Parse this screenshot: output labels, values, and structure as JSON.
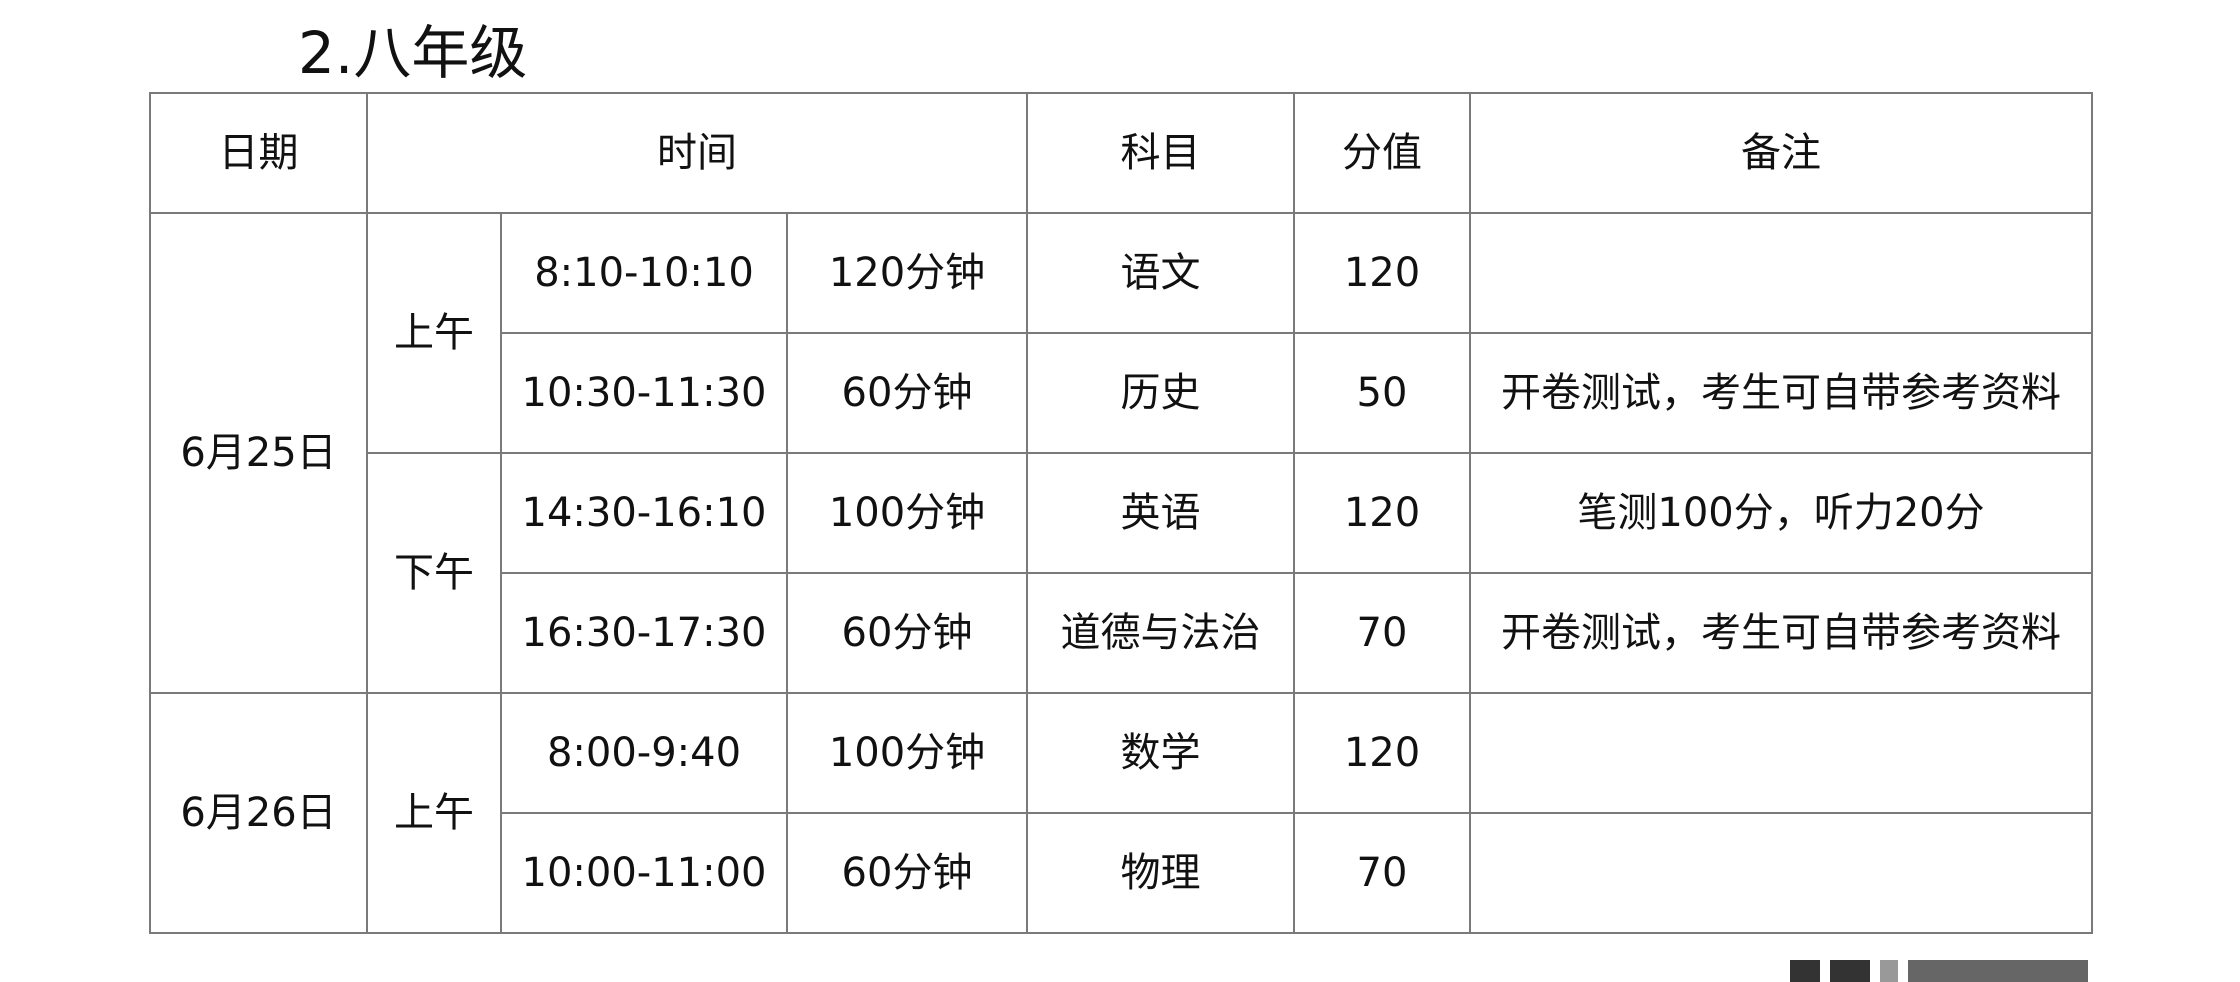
{
  "title": "2.八年级",
  "headers": {
    "date": "日期",
    "time": "时间",
    "subject": "科目",
    "score": "分值",
    "note": "备注"
  },
  "days": [
    {
      "date": "6月25日",
      "sessions": [
        {
          "period": "上午",
          "rows": [
            {
              "time": "8:10-10:10",
              "duration": "120分钟",
              "subject": "语文",
              "score": "120",
              "note": ""
            },
            {
              "time": "10:30-11:30",
              "duration": "60分钟",
              "subject": "历史",
              "score": "50",
              "note": "开卷测试，考生可自带参考资料"
            }
          ]
        },
        {
          "period": "下午",
          "rows": [
            {
              "time": "14:30-16:10",
              "duration": "100分钟",
              "subject": "英语",
              "score": "120",
              "note": "笔测100分，听力20分"
            },
            {
              "time": "16:30-17:30",
              "duration": "60分钟",
              "subject": "道德与法治",
              "score": "70",
              "note": "开卷测试，考生可自带参考资料"
            }
          ]
        }
      ]
    },
    {
      "date": "6月26日",
      "sessions": [
        {
          "period": "上午",
          "rows": [
            {
              "time": "8:00-9:40",
              "duration": "100分钟",
              "subject": "数学",
              "score": "120",
              "note": ""
            },
            {
              "time": "10:00-11:00",
              "duration": "60分钟",
              "subject": "物理",
              "score": "70",
              "note": ""
            }
          ]
        }
      ]
    }
  ]
}
